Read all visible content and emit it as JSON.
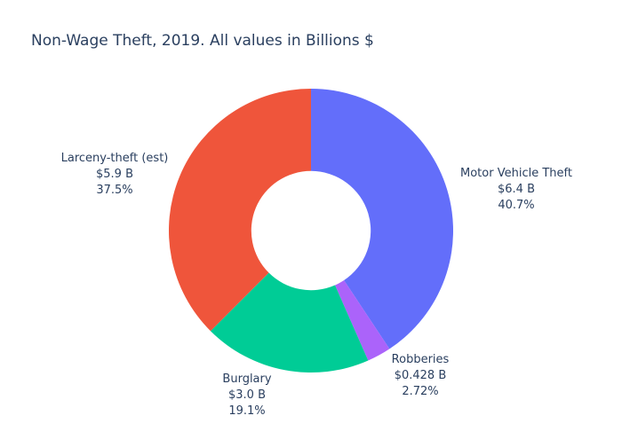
{
  "chart_data": {
    "type": "pie",
    "hole": 0.42,
    "title": "Non-Wage Theft, 2019.  All values in Billions $",
    "categories": [
      "Motor Vehicle Theft",
      "Robberies",
      "Burglary",
      "Larceny-theft (est)"
    ],
    "values": [
      6.4,
      0.428,
      3.0,
      5.9
    ],
    "value_labels": [
      "$6.4 B",
      "$0.428 B",
      "$3.0 B",
      "$5.9 B"
    ],
    "percent_labels": [
      "40.7%",
      "2.72%",
      "19.1%",
      "37.5%"
    ],
    "colors": [
      "#636efa",
      "#ab63fa",
      "#00cc96",
      "#ef553b"
    ]
  }
}
